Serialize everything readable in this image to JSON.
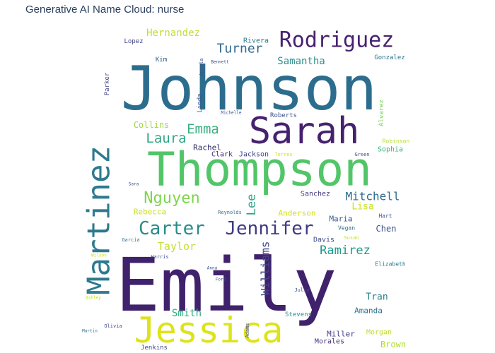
{
  "title": "Generative AI Name Cloud: nurse",
  "chart_data": {
    "type": "wordcloud",
    "title": "Generative AI Name Cloud: nurse",
    "colormap": "viridis",
    "words": [
      {
        "text": "Emily",
        "weight": 100,
        "orientation": "horizontal",
        "color": "#40226c"
      },
      {
        "text": "Johnson",
        "weight": 84,
        "orientation": "horizontal",
        "color": "#2c6d8e"
      },
      {
        "text": "Thompson",
        "weight": 66,
        "orientation": "horizontal",
        "color": "#52c569"
      },
      {
        "text": "Jessica",
        "weight": 50,
        "orientation": "horizontal",
        "color": "#dde31a"
      },
      {
        "text": "Sarah",
        "weight": 50,
        "orientation": "horizontal",
        "color": "#46226e"
      },
      {
        "text": "Martinez",
        "weight": 44,
        "orientation": "vertical",
        "color": "#2d7a8e"
      },
      {
        "text": "Rodriguez",
        "weight": 30,
        "orientation": "horizontal",
        "color": "#47226f"
      },
      {
        "text": "Jennifer",
        "weight": 27,
        "orientation": "horizontal",
        "color": "#3e3a86"
      },
      {
        "text": "Carter",
        "weight": 27,
        "orientation": "horizontal",
        "color": "#2a8c8a"
      },
      {
        "text": "Nguyen",
        "weight": 22,
        "orientation": "horizontal",
        "color": "#7cd54a"
      },
      {
        "text": "Laura",
        "weight": 20,
        "orientation": "horizontal",
        "color": "#30a784"
      },
      {
        "text": "Emma",
        "weight": 19,
        "orientation": "horizontal",
        "color": "#38b07f"
      },
      {
        "text": "Turner",
        "weight": 18,
        "orientation": "horizontal",
        "color": "#31688e"
      },
      {
        "text": "Ramirez",
        "weight": 18,
        "orientation": "horizontal",
        "color": "#1f9a8a"
      },
      {
        "text": "Williams",
        "weight": 17,
        "orientation": "vertical",
        "color": "#3e4a89"
      },
      {
        "text": "Lee",
        "weight": 17,
        "orientation": "vertical",
        "color": "#2ba487"
      },
      {
        "text": "Mitchell",
        "weight": 16,
        "orientation": "horizontal",
        "color": "#2f6c8e"
      },
      {
        "text": "Taylor",
        "weight": 15,
        "orientation": "horizontal",
        "color": "#c3df2e"
      },
      {
        "text": "Samantha",
        "weight": 14,
        "orientation": "horizontal",
        "color": "#2f8e8c"
      },
      {
        "text": "Hernandez",
        "weight": 14,
        "orientation": "horizontal",
        "color": "#c1de2f"
      },
      {
        "text": "Smith",
        "weight": 14,
        "orientation": "horizontal",
        "color": "#27ad81"
      },
      {
        "text": "Lisa",
        "weight": 13,
        "orientation": "horizontal",
        "color": "#c8e020"
      },
      {
        "text": "Tran",
        "weight": 13,
        "orientation": "horizontal",
        "color": "#26838f"
      },
      {
        "text": "Collins",
        "weight": 12,
        "orientation": "horizontal",
        "color": "#9fd938"
      },
      {
        "text": "Chen",
        "weight": 12,
        "orientation": "horizontal",
        "color": "#3a528b"
      },
      {
        "text": "Brown",
        "weight": 12,
        "orientation": "horizontal",
        "color": "#b1dd2f"
      },
      {
        "text": "Rachel",
        "weight": 11,
        "orientation": "horizontal",
        "color": "#2d2b62"
      },
      {
        "text": "Rebecca",
        "weight": 11,
        "orientation": "horizontal",
        "color": "#c9e021"
      },
      {
        "text": "Miller",
        "weight": 11,
        "orientation": "horizontal",
        "color": "#423f85"
      },
      {
        "text": "Maria",
        "weight": 11,
        "orientation": "horizontal",
        "color": "#38598c"
      },
      {
        "text": "Anderson",
        "weight": 11,
        "orientation": "horizontal",
        "color": "#d2e21b"
      },
      {
        "text": "Amanda",
        "weight": 11,
        "orientation": "horizontal",
        "color": "#2c708e"
      },
      {
        "text": "Morales",
        "weight": 11,
        "orientation": "horizontal",
        "color": "#46307e"
      },
      {
        "text": "Sophia",
        "weight": 10,
        "orientation": "horizontal",
        "color": "#35b779"
      },
      {
        "text": "Morgan",
        "weight": 10,
        "orientation": "horizontal",
        "color": "#c0de2c"
      },
      {
        "text": "Jackson",
        "weight": 10,
        "orientation": "horizontal",
        "color": "#414487"
      },
      {
        "text": "Davis",
        "weight": 10,
        "orientation": "horizontal",
        "color": "#3d4d8a"
      },
      {
        "text": "Clark",
        "weight": 10,
        "orientation": "horizontal",
        "color": "#482475"
      },
      {
        "text": "Sanchez",
        "weight": 10,
        "orientation": "horizontal",
        "color": "#443a83"
      },
      {
        "text": "Rivera",
        "weight": 10,
        "orientation": "horizontal",
        "color": "#2a788e"
      },
      {
        "text": "Kim",
        "weight": 9,
        "orientation": "horizontal",
        "color": "#2c5e8d"
      },
      {
        "text": "Lopez",
        "weight": 9,
        "orientation": "horizontal",
        "color": "#404387"
      },
      {
        "text": "Gonzalez",
        "weight": 9,
        "orientation": "horizontal",
        "color": "#2a768e"
      },
      {
        "text": "Roberts",
        "weight": 9,
        "orientation": "horizontal",
        "color": "#3b518b"
      },
      {
        "text": "Stevens",
        "weight": 9,
        "orientation": "horizontal",
        "color": "#2a8c8a"
      },
      {
        "text": "Jenkins",
        "weight": 9,
        "orientation": "horizontal",
        "color": "#3f4889"
      },
      {
        "text": "Parker",
        "weight": 9,
        "orientation": "vertical",
        "color": "#404588"
      },
      {
        "text": "Linda",
        "weight": 9,
        "orientation": "vertical",
        "color": "#3a528b"
      },
      {
        "text": "Alvarez",
        "weight": 9,
        "orientation": "vertical",
        "color": "#75d054"
      },
      {
        "text": "Robinson",
        "weight": 8,
        "orientation": "horizontal",
        "color": "#b5de2b"
      },
      {
        "text": "Elizabeth",
        "weight": 8,
        "orientation": "horizontal",
        "color": "#29798e"
      },
      {
        "text": "Hart",
        "weight": 8,
        "orientation": "horizontal",
        "color": "#3b518b"
      },
      {
        "text": "Vegan",
        "weight": 8,
        "orientation": "horizontal",
        "color": "#306a8e"
      },
      {
        "text": "Green",
        "weight": 7,
        "orientation": "horizontal",
        "color": "#3a538b"
      },
      {
        "text": "Harris",
        "weight": 7,
        "orientation": "horizontal",
        "color": "#3f4889"
      },
      {
        "text": "Garcia",
        "weight": 7,
        "orientation": "horizontal",
        "color": "#2d718e"
      },
      {
        "text": "Adams",
        "weight": 7,
        "orientation": "vertical",
        "color": "#3f4889"
      },
      {
        "text": "Angela",
        "weight": 7,
        "orientation": "vertical",
        "color": "#3b528b"
      },
      {
        "text": "Torres",
        "weight": 7,
        "orientation": "horizontal",
        "color": "#d8e219"
      },
      {
        "text": "Reynolds",
        "weight": 7,
        "orientation": "horizontal",
        "color": "#2c728e"
      },
      {
        "text": "Susan",
        "weight": 7,
        "orientation": "horizontal",
        "color": "#c2df23"
      },
      {
        "text": "Julia",
        "weight": 7,
        "orientation": "horizontal",
        "color": "#3e4c8a"
      },
      {
        "text": "Olivia",
        "weight": 7,
        "orientation": "horizontal",
        "color": "#3e4c8a"
      },
      {
        "text": "Anna",
        "weight": 6,
        "orientation": "horizontal",
        "color": "#3b528b"
      },
      {
        "text": "Martin",
        "weight": 6,
        "orientation": "horizontal",
        "color": "#2c728e"
      },
      {
        "text": "Ashley",
        "weight": 6,
        "orientation": "horizontal",
        "color": "#c9e020"
      },
      {
        "text": "Ford",
        "weight": 6,
        "orientation": "horizontal",
        "color": "#3b528b"
      },
      {
        "text": "Bennett",
        "weight": 6,
        "orientation": "horizontal",
        "color": "#3e4c8a"
      },
      {
        "text": "Wilson",
        "weight": 6,
        "orientation": "horizontal",
        "color": "#c9e020"
      },
      {
        "text": "Michelle",
        "weight": 6,
        "orientation": "horizontal",
        "color": "#3e4c8a"
      },
      {
        "text": "Sara",
        "weight": 6,
        "orientation": "horizontal",
        "color": "#3b528b"
      }
    ]
  }
}
